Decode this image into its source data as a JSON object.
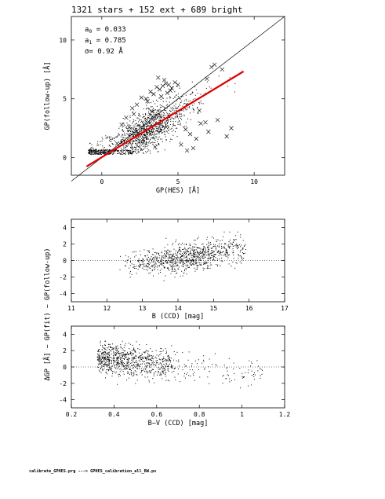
{
  "footer": "calibrate_GPHES.prg ---> GPHES_calibration_all_BW.ps",
  "shared_ylabel": "ΔGP [Å] − GP(fit) − GP(follow-up)",
  "chart_data": [
    {
      "type": "scatter",
      "title": "1321 stars + 152 ext + 689 bright",
      "xlabel": "GP(HES) [Å]",
      "ylabel": "GP(follow-up) [Å]",
      "xlim": [
        -2,
        12
      ],
      "ylim": [
        -1.5,
        12
      ],
      "xticks": [
        0,
        5,
        10
      ],
      "yticks": [
        0,
        5,
        10
      ],
      "annotations": {
        "a0_label": "a",
        "a0_sub": "0",
        "a0_value": " = 0.033",
        "a1_label": "a",
        "a1_sub": "1",
        "a1_value": " = 0.785",
        "sigma": "σ= 0.92 Å"
      },
      "identity_line": {
        "x": [
          -2,
          12
        ],
        "y": [
          -2,
          12
        ]
      },
      "fit_line": {
        "color": "#e00000",
        "x": [
          -1.0,
          9.3
        ],
        "y": [
          -0.75,
          7.33
        ]
      },
      "cross_points": {
        "x": [
          1.0,
          1.3,
          1.6,
          2.0,
          2.3,
          2.6,
          2.9,
          3.2,
          3.4,
          3.6,
          3.8,
          4.0,
          4.2,
          4.4,
          4.6,
          4.8,
          5.0,
          3.0,
          3.3,
          3.9,
          4.1,
          4.5,
          2.4,
          2.7,
          3.5,
          5.2,
          5.5,
          5.8,
          6.2,
          6.5,
          6.8,
          7.2,
          7.6,
          8.2,
          8.5,
          6.0,
          6.4,
          7.0,
          1.8,
          2.1,
          3.7,
          4.3,
          5.6,
          6.9,
          7.4,
          7.9
        ],
        "y": [
          1.2,
          2.8,
          3.4,
          4.2,
          4.5,
          5.1,
          5.0,
          5.6,
          5.4,
          6.0,
          5.8,
          6.1,
          6.3,
          6.2,
          5.9,
          6.4,
          6.2,
          4.8,
          3.9,
          5.2,
          6.6,
          5.7,
          2.1,
          1.5,
          0.9,
          1.1,
          2.4,
          2.0,
          1.6,
          2.9,
          3.0,
          7.7,
          3.2,
          1.8,
          2.5,
          0.8,
          4.0,
          2.2,
          2.6,
          3.7,
          6.8,
          5.5,
          0.6,
          6.7,
          7.9,
          7.5
        ]
      },
      "n_scatter_points": 1500
    },
    {
      "type": "scatter",
      "xlabel": "B (CCD) [mag]",
      "ylabel": "",
      "xlim": [
        11,
        17
      ],
      "ylim": [
        -5,
        5
      ],
      "xticks": [
        11,
        12,
        13,
        14,
        15,
        16,
        17
      ],
      "yticks": [
        -4,
        -2,
        0,
        2,
        4
      ],
      "zero_line": "dotted",
      "n_points": 900
    },
    {
      "type": "scatter",
      "xlabel": "B−V (CCD) [mag]",
      "ylabel": "",
      "xlim": [
        0.2,
        1.2
      ],
      "ylim": [
        -5,
        5
      ],
      "xticks": [
        0.2,
        0.4,
        0.6,
        0.8,
        1.0,
        1.2
      ],
      "xtick_labels": [
        "0.2",
        "0.4",
        "0.6",
        "0.8",
        "1",
        "1.2"
      ],
      "yticks": [
        -4,
        -2,
        0,
        2,
        4
      ],
      "zero_line": "dotted",
      "n_points": 900
    }
  ]
}
